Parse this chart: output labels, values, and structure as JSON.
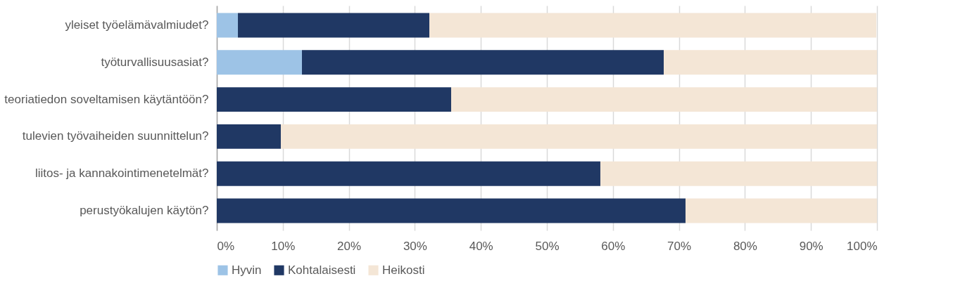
{
  "chart_data": {
    "type": "bar",
    "orientation": "horizontal",
    "stacked": true,
    "categories": [
      "yleiset työelämävalmiudet?",
      "työturvallisuusasiat?",
      "teoriatiedon soveltamisen käytäntöön?",
      "tulevien työvaiheiden suunnittelun?",
      "liitos- ja kannakointimenetelmät?",
      "perustyökalujen käytön?"
    ],
    "series": [
      {
        "name": "Hyvin",
        "color": "#9dc3e6",
        "values": [
          3.2,
          12.9,
          0,
          0,
          0,
          0
        ]
      },
      {
        "name": "Kohtalaisesti",
        "color": "#203864",
        "values": [
          29.0,
          54.8,
          35.5,
          9.7,
          58.1,
          71.0
        ]
      },
      {
        "name": "Heikosti",
        "color": "#f4e6d6",
        "values": [
          67.7,
          32.3,
          64.5,
          90.3,
          41.9,
          29.0
        ]
      }
    ],
    "xlim": [
      0,
      100
    ],
    "xticks": [
      {
        "value": 0,
        "label": "0%"
      },
      {
        "value": 10,
        "label": "10%"
      },
      {
        "value": 20,
        "label": "20%"
      },
      {
        "value": 30,
        "label": "30%"
      },
      {
        "value": 40,
        "label": "40%"
      },
      {
        "value": 50,
        "label": "50%"
      },
      {
        "value": 60,
        "label": "60%"
      },
      {
        "value": 70,
        "label": "70%"
      },
      {
        "value": 80,
        "label": "80%"
      },
      {
        "value": 90,
        "label": "90%"
      },
      {
        "value": 100,
        "label": "100%"
      }
    ],
    "grid": "x",
    "legend": "bottom"
  }
}
